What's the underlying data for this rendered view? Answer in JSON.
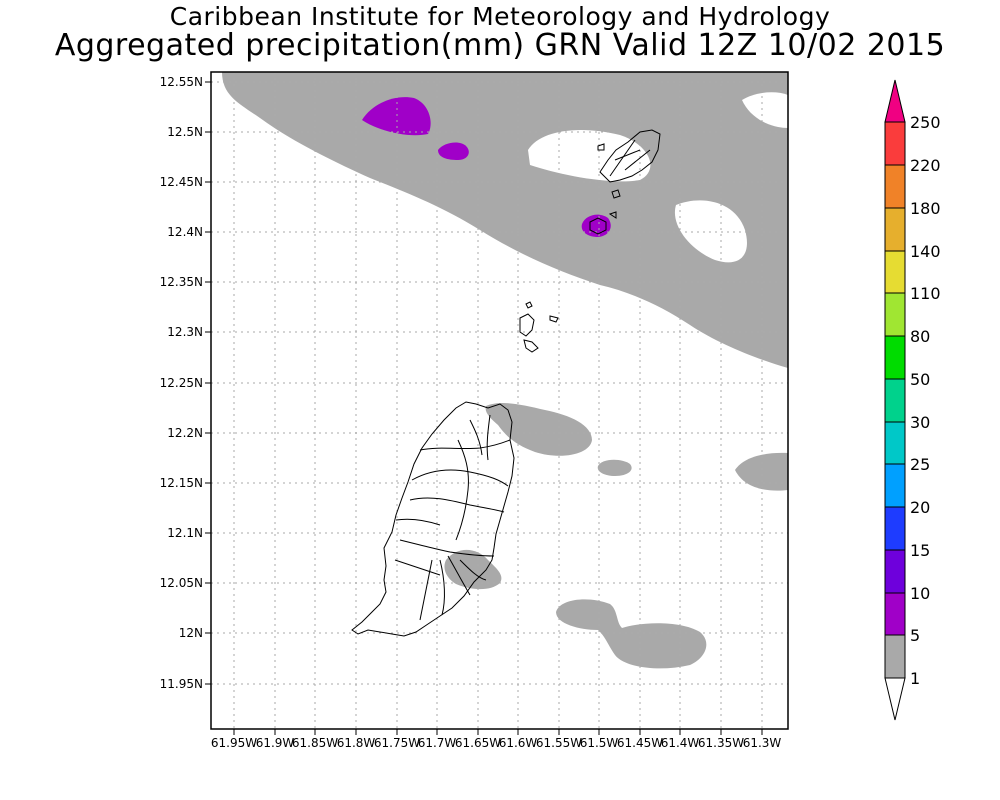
{
  "title_line1": "Caribbean Institute for Meteorology and Hydrology",
  "title_line2": "Aggregated precipitation(mm) GRN Valid 12Z 10/02 2015",
  "y_axis_labels": [
    "12.55N",
    "12.5N",
    "12.45N",
    "12.4N",
    "12.35N",
    "12.3N",
    "12.25N",
    "12.2N",
    "12.15N",
    "12.1N",
    "12.05N",
    "12N",
    "11.95N"
  ],
  "x_axis_labels": [
    "61.95W",
    "61.9W",
    "61.85W",
    "61.8W",
    "61.75W",
    "61.7W",
    "61.65W",
    "61.6W",
    "61.55W",
    "61.5W",
    "61.45W",
    "61.4W",
    "61.35W",
    "61.3W"
  ],
  "colorbar": {
    "labels": [
      "1",
      "5",
      "10",
      "15",
      "20",
      "25",
      "30",
      "50",
      "80",
      "110",
      "140",
      "180",
      "220",
      "250"
    ],
    "colors": [
      "#ffffff",
      "#a9a9a9",
      "#a000c8",
      "#6e00dc",
      "#1e3cff",
      "#00a0ff",
      "#00c8c8",
      "#00d28c",
      "#00dc00",
      "#a0e632",
      "#e6dc32",
      "#e6af2d",
      "#f08228",
      "#fa3c3c",
      "#f00082"
    ]
  },
  "map": {
    "lon_range": [
      61.97,
      61.26
    ],
    "lat_range": [
      11.92,
      12.565
    ],
    "precip_colors": {
      "light": "#a9a9a9",
      "moderate": "#a000c8"
    },
    "coastline_color": "#000000"
  }
}
